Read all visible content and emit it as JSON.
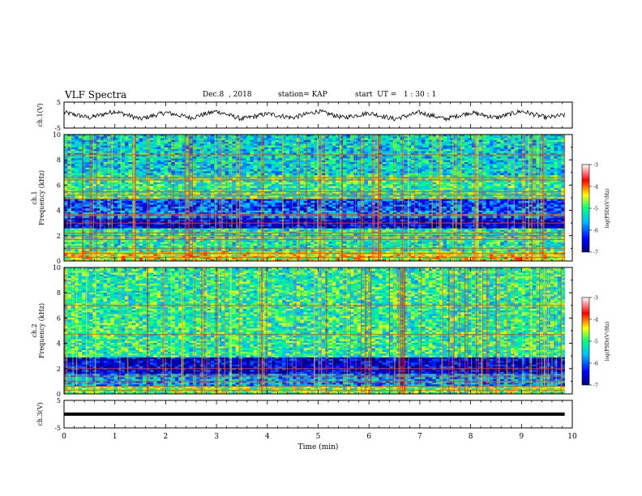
{
  "header": {
    "title": "VLF Spectra",
    "date": "Dec.8  , 2018",
    "station": "station= KAP",
    "start": "start  UT =   1 : 30 : 1"
  },
  "chart_data": [
    {
      "type": "line",
      "panel": "ch1-waveform",
      "ylabel": "ch.1(V)",
      "ylim": [
        -5,
        5
      ],
      "yticks": [
        "5",
        "-5"
      ],
      "xlim": [
        0,
        10
      ],
      "series": [
        {
          "x": [
            0,
            0.5,
            1,
            1.5,
            2,
            2.5,
            3,
            3.5,
            4,
            4.5,
            5,
            5.5,
            6,
            6.5,
            7,
            7.5,
            8,
            8.5,
            9,
            9.5,
            9.85
          ],
          "y": [
            1,
            -1,
            1.5,
            -1.5,
            1,
            -1,
            1.5,
            -1.5,
            0.5,
            -1,
            1.5,
            -1,
            0.8,
            -1.5,
            1,
            -1.5,
            1,
            -1,
            1.5,
            -1,
            0
          ]
        }
      ]
    },
    {
      "type": "heatmap",
      "panel": "ch1-spectrogram",
      "ylabel_top": "ch.1",
      "ylabel": "Frequency (kHz)",
      "ylim": [
        0,
        10
      ],
      "yticks": [
        "0",
        "2",
        "4",
        "6",
        "8",
        "10"
      ],
      "xlim": [
        0,
        10
      ],
      "value_range": [
        -7,
        -3
      ],
      "colorbar": {
        "label": "log(PSD)(V²/Hz)",
        "ticks": [
          "-3",
          "-4",
          "-5",
          "-6",
          "-7"
        ]
      },
      "bands": [
        {
          "f0": 0,
          "f1": 0.8,
          "level": -4.5
        },
        {
          "f0": 0.8,
          "f1": 2.6,
          "level": -5.2
        },
        {
          "f0": 2.6,
          "f1": 3.4,
          "level": -6.6
        },
        {
          "f0": 3.4,
          "f1": 4.0,
          "level": -5.8
        },
        {
          "f0": 4.0,
          "f1": 4.9,
          "level": -6.1
        },
        {
          "f0": 4.9,
          "f1": 6.8,
          "level": -5.1
        },
        {
          "f0": 6.8,
          "f1": 10,
          "level": -5.4
        }
      ],
      "lines_khz": [
        0.3,
        0.6,
        1.0,
        1.7,
        2.0,
        2.2,
        3.0,
        3.6,
        3.7,
        4.9,
        5.2,
        5.5,
        6.4,
        6.6,
        8.4
      ]
    },
    {
      "type": "heatmap",
      "panel": "ch2-spectrogram",
      "ylabel_top": "ch.2",
      "ylabel": "Frequency (kHz)",
      "ylim": [
        0,
        10
      ],
      "yticks": [
        "0",
        "2",
        "4",
        "6",
        "8",
        "10"
      ],
      "xlim": [
        0,
        10
      ],
      "value_range": [
        -7,
        -3
      ],
      "colorbar": {
        "label": "log(PSD)(V²/Hz)",
        "ticks": [
          "-3",
          "-4",
          "-5",
          "-6",
          "-7"
        ]
      },
      "bands": [
        {
          "f0": 0,
          "f1": 0.6,
          "level": -4.8
        },
        {
          "f0": 0.6,
          "f1": 1.6,
          "level": -5.7
        },
        {
          "f0": 1.6,
          "f1": 2.9,
          "level": -6.6
        },
        {
          "f0": 2.9,
          "f1": 10,
          "level": -5.1
        }
      ],
      "lines_khz": [
        0.3,
        0.6,
        1.0,
        1.4,
        2.0,
        4.7,
        7.0
      ]
    },
    {
      "type": "line",
      "panel": "ch3-waveform",
      "ylabel": "ch.3(V)",
      "ylim": [
        -5,
        5
      ],
      "yticks": [
        "5",
        "-5"
      ],
      "xlim": [
        0,
        10
      ],
      "series": [
        {
          "x": [
            0,
            9.85
          ],
          "y": [
            0,
            0
          ]
        }
      ]
    }
  ],
  "xaxis": {
    "label": "Time (min)",
    "ticks": [
      "0",
      "1",
      "2",
      "3",
      "4",
      "5",
      "6",
      "7",
      "8",
      "9",
      "10"
    ]
  }
}
